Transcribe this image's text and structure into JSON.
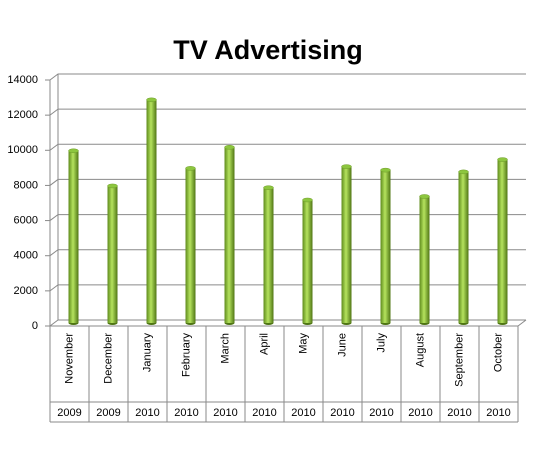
{
  "chart_data": {
    "type": "bar",
    "title": "TV Advertising",
    "categories": [
      "November",
      "December",
      "January",
      "February",
      "March",
      "April",
      "May",
      "June",
      "July",
      "August",
      "September",
      "October"
    ],
    "category_years": [
      "2009",
      "2009",
      "2010",
      "2010",
      "2010",
      "2010",
      "2010",
      "2010",
      "2010",
      "2010",
      "2010",
      "2010"
    ],
    "values": [
      9800,
      7800,
      12700,
      8800,
      10000,
      7700,
      7000,
      8900,
      8700,
      7200,
      8600,
      9300
    ],
    "color": "#8dc63f",
    "ylim": [
      0,
      14000
    ],
    "yticks": [
      0,
      2000,
      4000,
      6000,
      8000,
      10000,
      12000,
      14000
    ],
    "grid": true
  }
}
